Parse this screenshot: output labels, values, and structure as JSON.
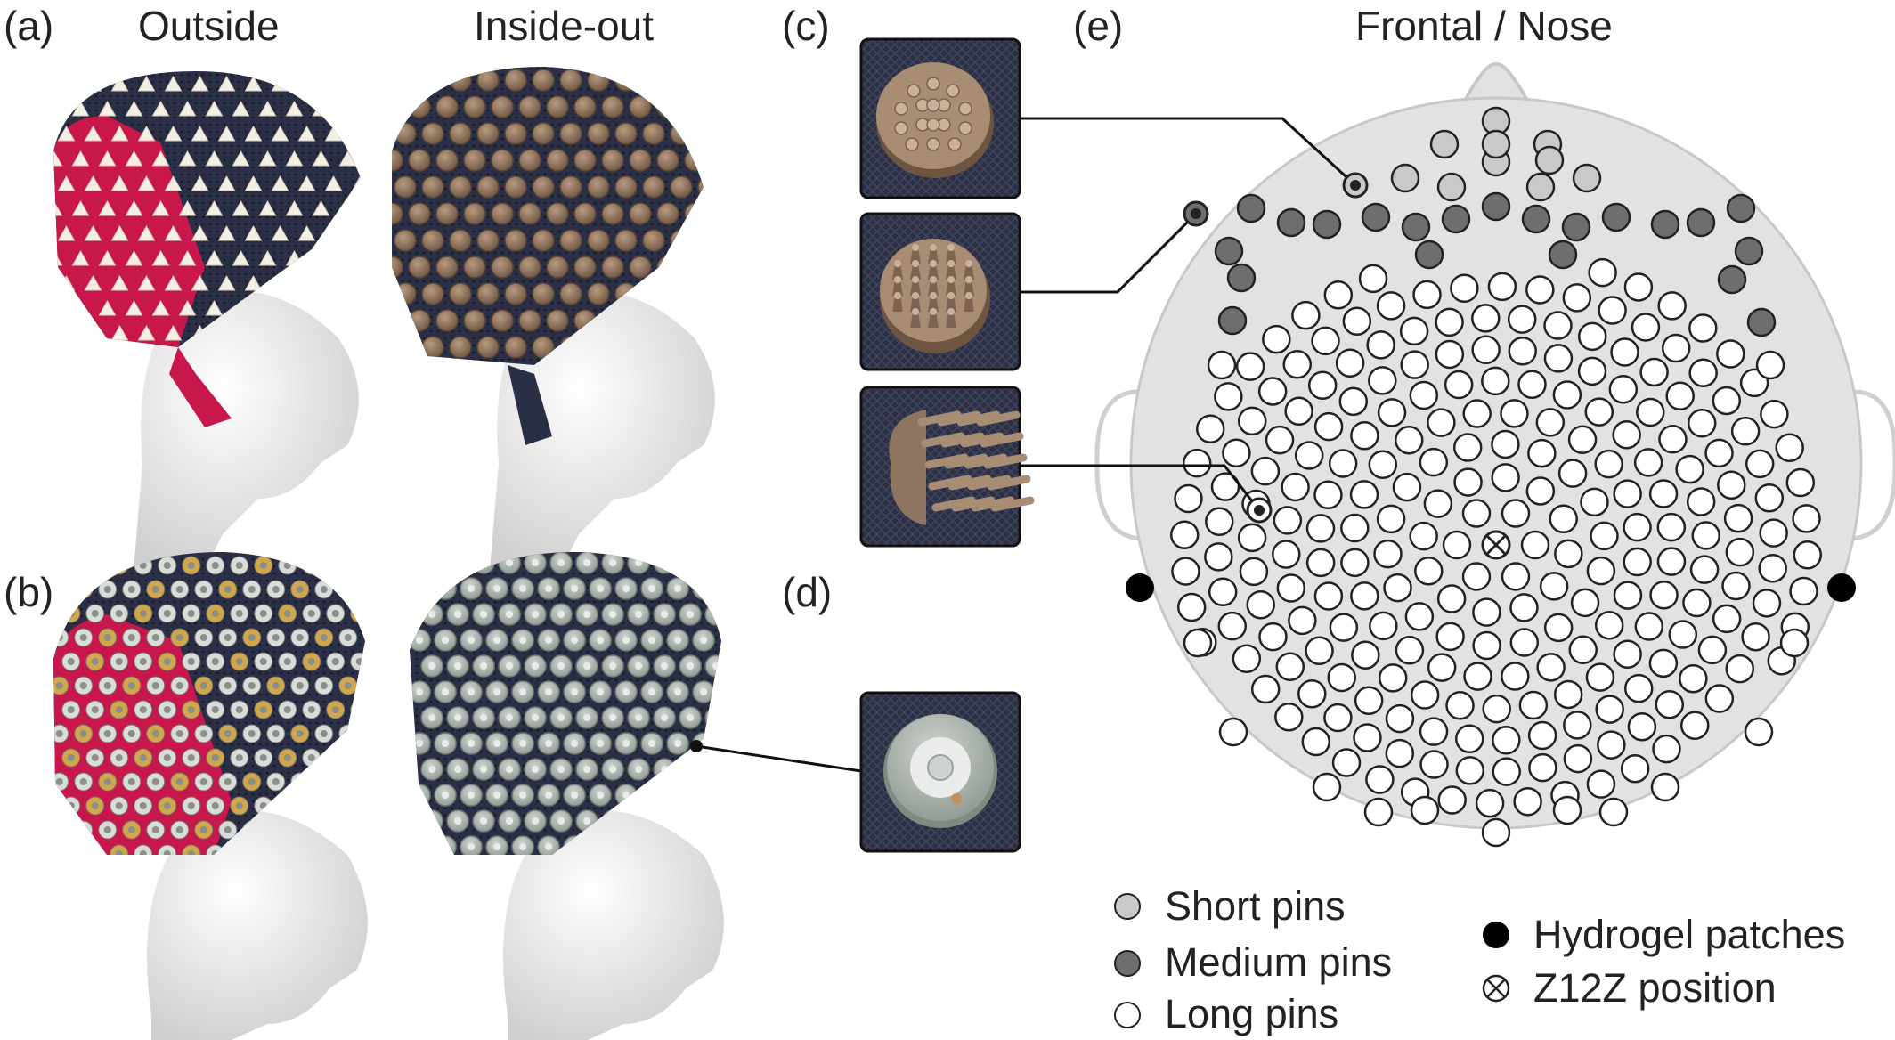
{
  "panels": {
    "a": "(a)",
    "b": "(b)",
    "c": "(c)",
    "d": "(d)",
    "e": "(e)"
  },
  "columns": {
    "outside": "Outside",
    "inside_out": "Inside-out"
  },
  "headmap": {
    "title": "Frontal / Nose",
    "center_marker": "Z12Z"
  },
  "legend": {
    "short": "Short pins",
    "medium": "Medium pins",
    "long": "Long pins",
    "hydrogel": "Hydrogel patches",
    "z12z": "Z12Z position"
  },
  "colors": {
    "short": "#c9c9c9",
    "medium": "#6e6e6e",
    "long": "#ffffff",
    "hydrogel": "#000000",
    "head": "#e2e2e2",
    "cap_navy": "#2a2f45",
    "cap_red": "#c8174a",
    "pin_brown": "#8a6f58",
    "electrode_white": "#f3efe2",
    "electrode_grey": "#a9b1ac"
  }
}
